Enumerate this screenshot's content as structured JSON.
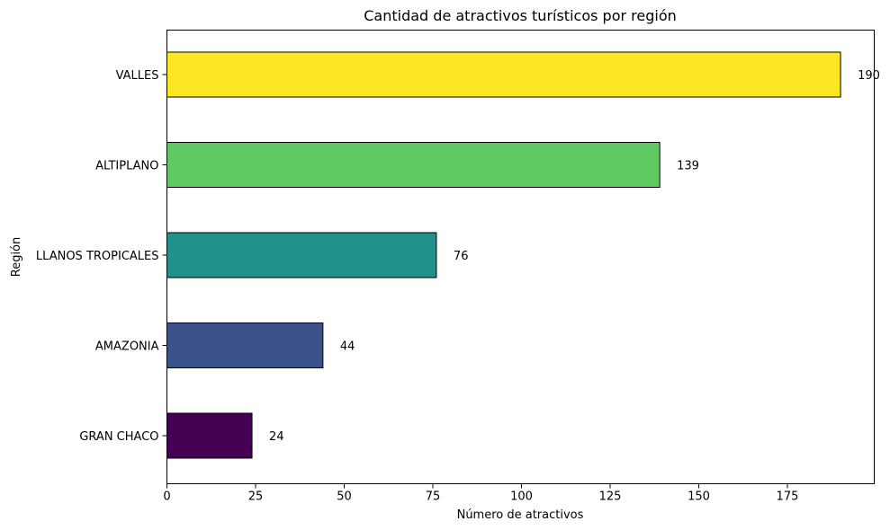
{
  "chart_data": {
    "type": "bar",
    "orientation": "horizontal",
    "title": "Cantidad de atractivos turísticos por región",
    "xlabel": "Número de atractivos",
    "ylabel": "Región",
    "categories": [
      "GRAN CHACO",
      "AMAZONIA",
      "LLANOS TROPICALES",
      "ALTIPLANO",
      "VALLES"
    ],
    "values": [
      24,
      44,
      76,
      139,
      190
    ],
    "colors": [
      "#440154",
      "#3b528b",
      "#21918c",
      "#5ec962",
      "#fde725"
    ],
    "bar_edge_color": "#000000",
    "xlim": [
      0,
      199.5
    ],
    "xticks": [
      0,
      25,
      50,
      75,
      100,
      125,
      150,
      175
    ],
    "grid": false,
    "data_labels": [
      "24",
      "44",
      "76",
      "139",
      "190"
    ]
  }
}
